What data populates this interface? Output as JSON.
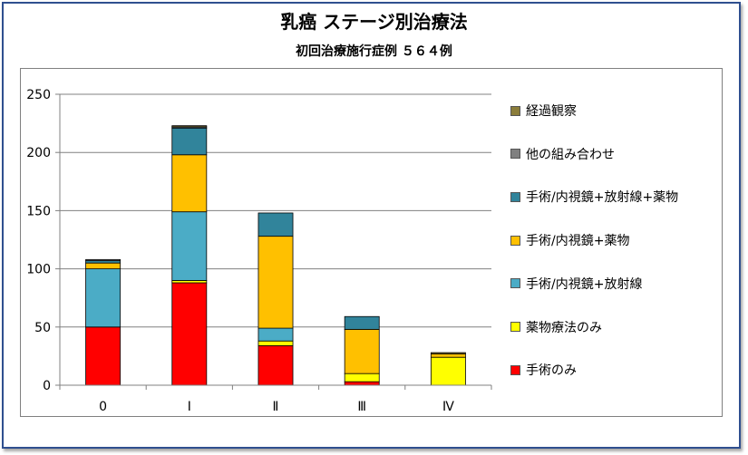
{
  "chart_data": {
    "type": "bar",
    "stacked": true,
    "title": "乳癌 ステージ別治療法",
    "subtitle": "初回治療施行症例 ５６４例",
    "categories": [
      "0",
      "Ⅰ",
      "Ⅱ",
      "Ⅲ",
      "Ⅳ"
    ],
    "ylim": [
      0,
      250
    ],
    "yticks": [
      0,
      50,
      100,
      150,
      200,
      250
    ],
    "grid": true,
    "legend_position": "right",
    "series": [
      {
        "name": "手術のみ",
        "color": "#ff0000",
        "values": [
          50,
          88,
          34,
          3,
          0
        ]
      },
      {
        "name": "薬物療法のみ",
        "color": "#ffff00",
        "values": [
          0,
          2,
          4,
          7,
          24
        ]
      },
      {
        "name": "手術/内視鏡+放射線",
        "color": "#4bacc6",
        "values": [
          50,
          59,
          11,
          0,
          0
        ]
      },
      {
        "name": "手術/内視鏡+薬物",
        "color": "#ffc000",
        "values": [
          5,
          49,
          79,
          38,
          3
        ]
      },
      {
        "name": "手術/内視鏡+放射線+薬物",
        "color": "#31849b",
        "values": [
          2,
          23,
          20,
          11,
          0
        ]
      },
      {
        "name": "他の組み合わせ",
        "color": "#808080",
        "values": [
          1,
          1,
          0,
          0,
          0
        ]
      },
      {
        "name": "経過観察",
        "color": "#8b7d3a",
        "values": [
          0,
          1,
          0,
          0,
          1
        ]
      }
    ]
  }
}
